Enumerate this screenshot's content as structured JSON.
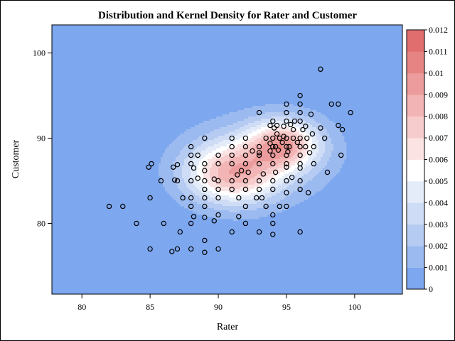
{
  "chart_data": {
    "type": "heatmap",
    "title": "Distribution and Kernel Density for Rater and Customer",
    "xlabel": "Rater",
    "ylabel": "Customer",
    "xlim": [
      77.8,
      103.5
    ],
    "ylim": [
      71.7,
      103.3
    ],
    "x_ticks": [
      80,
      85,
      90,
      95,
      100
    ],
    "y_ticks": [
      80,
      90,
      100
    ],
    "colorbar": {
      "min": 0,
      "max": 0.012,
      "ticks": [
        "0",
        "0.001",
        "0.002",
        "0.003",
        "0.004",
        "0.005",
        "0.006",
        "0.007",
        "0.008",
        "0.009",
        "0.01",
        "0.011",
        "0.012"
      ],
      "colors": [
        "#7da7ee",
        "#9bbaf0",
        "#b6cbf2",
        "#cedcf5",
        "#e4ecf9",
        "#ffffff",
        "#fbe3e3",
        "#f7cccc",
        "#f2b4b4",
        "#ec9c9c",
        "#e68484",
        "#e06e6e"
      ]
    },
    "density_components": [
      {
        "mx": 91.0,
        "my": 85.8,
        "sx": 2.4,
        "sy": 2.5,
        "w": 0.0072
      },
      {
        "mx": 94.8,
        "my": 89.3,
        "sx": 1.8,
        "sy": 2.0,
        "w": 0.0072
      },
      {
        "mx": 93.2,
        "my": 87.8,
        "sx": 4.2,
        "sy": 3.8,
        "w": 0.0022
      }
    ],
    "points": [
      [
        97.5,
        98.1
      ],
      [
        96,
        95
      ],
      [
        98.3,
        94
      ],
      [
        98.8,
        94
      ],
      [
        95,
        94
      ],
      [
        96,
        94
      ],
      [
        95,
        93
      ],
      [
        96,
        93
      ],
      [
        93,
        93
      ],
      [
        96.8,
        92.8
      ],
      [
        99.7,
        93
      ],
      [
        94,
        92
      ],
      [
        95,
        92
      ],
      [
        96,
        92
      ],
      [
        95.6,
        92
      ],
      [
        93.8,
        91.5
      ],
      [
        94.3,
        91.5
      ],
      [
        94.8,
        91.4
      ],
      [
        95.3,
        91.6
      ],
      [
        96.4,
        91.4
      ],
      [
        97.5,
        91.2
      ],
      [
        98.8,
        91.5
      ],
      [
        99.1,
        91
      ],
      [
        94.1,
        91.2
      ],
      [
        94.3,
        90.5
      ],
      [
        94.8,
        90.2
      ],
      [
        95.5,
        91
      ],
      [
        96.2,
        91
      ],
      [
        96.9,
        90.5
      ],
      [
        89,
        90
      ],
      [
        91,
        90
      ],
      [
        92,
        90
      ],
      [
        93.5,
        90
      ],
      [
        94,
        90
      ],
      [
        94.5,
        90
      ],
      [
        95,
        90
      ],
      [
        95.5,
        90
      ],
      [
        96,
        90
      ],
      [
        96.5,
        90
      ],
      [
        97.8,
        90
      ],
      [
        93.8,
        89.4
      ],
      [
        94.2,
        89
      ],
      [
        94.7,
        89.5
      ],
      [
        95.2,
        89
      ],
      [
        95.8,
        89.5
      ],
      [
        96.4,
        89
      ],
      [
        88,
        89
      ],
      [
        91,
        89
      ],
      [
        92,
        89
      ],
      [
        93,
        89
      ],
      [
        94,
        89
      ],
      [
        95,
        89
      ],
      [
        96,
        89
      ],
      [
        97,
        89
      ],
      [
        92.5,
        88.5
      ],
      [
        93,
        88.3
      ],
      [
        93.8,
        88.5
      ],
      [
        94.4,
        88.6
      ],
      [
        95.1,
        88.4
      ],
      [
        96.7,
        88.3
      ],
      [
        88,
        88
      ],
      [
        88.5,
        88
      ],
      [
        90,
        88
      ],
      [
        91,
        88
      ],
      [
        92,
        88
      ],
      [
        93,
        88
      ],
      [
        94,
        88
      ],
      [
        95,
        88
      ],
      [
        96,
        88
      ],
      [
        99,
        88
      ],
      [
        84.9,
        86.6
      ],
      [
        85.1,
        87
      ],
      [
        86.7,
        86.6
      ],
      [
        87,
        86.9
      ],
      [
        88,
        87
      ],
      [
        89,
        87
      ],
      [
        90,
        87
      ],
      [
        91,
        87
      ],
      [
        92,
        87
      ],
      [
        93,
        87
      ],
      [
        94,
        87
      ],
      [
        95,
        87
      ],
      [
        96,
        87
      ],
      [
        97,
        87
      ],
      [
        88.2,
        86.5
      ],
      [
        89,
        86.2
      ],
      [
        91.7,
        86.2
      ],
      [
        95,
        86.6
      ],
      [
        96,
        86.5
      ],
      [
        98,
        86
      ],
      [
        85.8,
        85
      ],
      [
        87,
        85
      ],
      [
        88,
        85
      ],
      [
        89,
        85
      ],
      [
        90,
        85
      ],
      [
        91,
        85
      ],
      [
        92,
        85
      ],
      [
        93,
        85
      ],
      [
        94,
        85
      ],
      [
        95,
        85
      ],
      [
        96,
        85
      ],
      [
        86.8,
        85.1
      ],
      [
        88.5,
        85.3
      ],
      [
        89.7,
        85.2
      ],
      [
        91.4,
        85.7
      ],
      [
        92.2,
        86
      ],
      [
        93.3,
        85.8
      ],
      [
        94.2,
        86
      ],
      [
        95.4,
        85.4
      ],
      [
        89,
        84
      ],
      [
        90,
        84
      ],
      [
        91,
        84
      ],
      [
        92,
        84
      ],
      [
        93,
        84
      ],
      [
        94,
        84
      ],
      [
        96,
        84
      ],
      [
        87.4,
        83
      ],
      [
        88,
        83
      ],
      [
        89,
        83
      ],
      [
        90,
        83
      ],
      [
        91.5,
        83
      ],
      [
        92.8,
        83
      ],
      [
        93.2,
        83
      ],
      [
        95,
        83.6
      ],
      [
        96.6,
        83.6
      ],
      [
        85,
        83
      ],
      [
        88,
        82
      ],
      [
        89,
        82
      ],
      [
        92,
        82
      ],
      [
        93.5,
        82
      ],
      [
        94.5,
        82
      ],
      [
        95,
        82
      ],
      [
        82,
        82
      ],
      [
        83,
        82
      ],
      [
        88.2,
        80.8
      ],
      [
        89,
        80.7
      ],
      [
        90,
        81
      ],
      [
        91.5,
        80.8
      ],
      [
        94,
        81
      ],
      [
        84,
        80
      ],
      [
        86,
        80
      ],
      [
        88,
        80
      ],
      [
        89.7,
        80.3
      ],
      [
        92,
        80
      ],
      [
        94,
        80
      ],
      [
        87.2,
        79
      ],
      [
        91,
        79
      ],
      [
        93,
        79
      ],
      [
        94,
        78.7
      ],
      [
        96,
        79
      ],
      [
        89,
        78
      ],
      [
        85,
        77
      ],
      [
        86.6,
        76.7
      ],
      [
        87,
        77
      ],
      [
        88,
        77
      ],
      [
        89,
        76.6
      ],
      [
        90,
        77
      ]
    ]
  }
}
